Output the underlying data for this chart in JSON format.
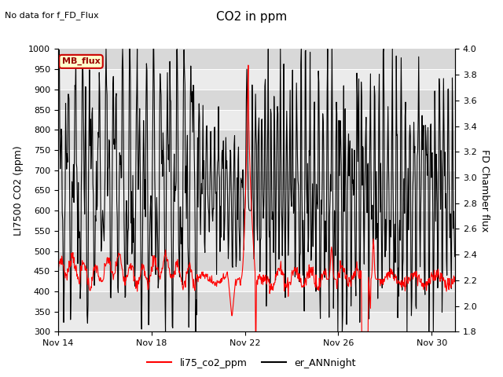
{
  "title": "CO2 in ppm",
  "top_left_text": "No data for f_FD_Flux",
  "ylabel_left": "LI7500 CO2 (ppm)",
  "ylabel_right": "FD Chamber flux",
  "ylim_left": [
    300,
    1000
  ],
  "ylim_right": [
    1.8,
    4.0
  ],
  "yticks_left": [
    300,
    350,
    400,
    450,
    500,
    550,
    600,
    650,
    700,
    750,
    800,
    850,
    900,
    950,
    1000
  ],
  "yticks_right": [
    1.8,
    2.0,
    2.2,
    2.4,
    2.6,
    2.8,
    3.0,
    3.2,
    3.4,
    3.6,
    3.8,
    4.0
  ],
  "xticklabels": [
    "Nov 14",
    "Nov 18",
    "Nov 22",
    "Nov 26",
    "Nov 30"
  ],
  "legend_label": "MB_flux",
  "legend_bg": "#ffffcc",
  "legend_border": "#cc0000",
  "line1_label": "li75_co2_ppm",
  "line1_color": "#ff0000",
  "line2_label": "er_ANNnight",
  "line2_color": "#000000",
  "plot_bg_light": "#ebebeb",
  "plot_bg_dark": "#d8d8d8",
  "fig_bg": "#ffffff"
}
